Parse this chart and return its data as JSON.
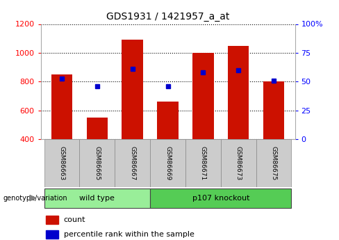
{
  "title": "GDS1931 / 1421957_a_at",
  "samples": [
    "GSM86663",
    "GSM86665",
    "GSM86667",
    "GSM86669",
    "GSM86671",
    "GSM86673",
    "GSM86675"
  ],
  "groups": [
    {
      "label": "wild type",
      "indices": [
        0,
        1,
        2
      ],
      "color": "#99ee99"
    },
    {
      "label": "p107 knockout",
      "indices": [
        3,
        4,
        5,
        6
      ],
      "color": "#55cc55"
    }
  ],
  "counts": [
    850,
    550,
    1090,
    660,
    1000,
    1050,
    800
  ],
  "percentile_ranks": [
    820,
    770,
    890,
    770,
    865,
    880,
    805
  ],
  "ymin": 400,
  "ymax": 1200,
  "y_ticks": [
    400,
    600,
    800,
    1000,
    1200
  ],
  "bar_color": "#cc1100",
  "dot_color": "#0000cc",
  "label_box_color": "#cccccc",
  "genotype_label": "genotype/variation",
  "legend_count": "count",
  "legend_percentile": "percentile rank within the sample"
}
